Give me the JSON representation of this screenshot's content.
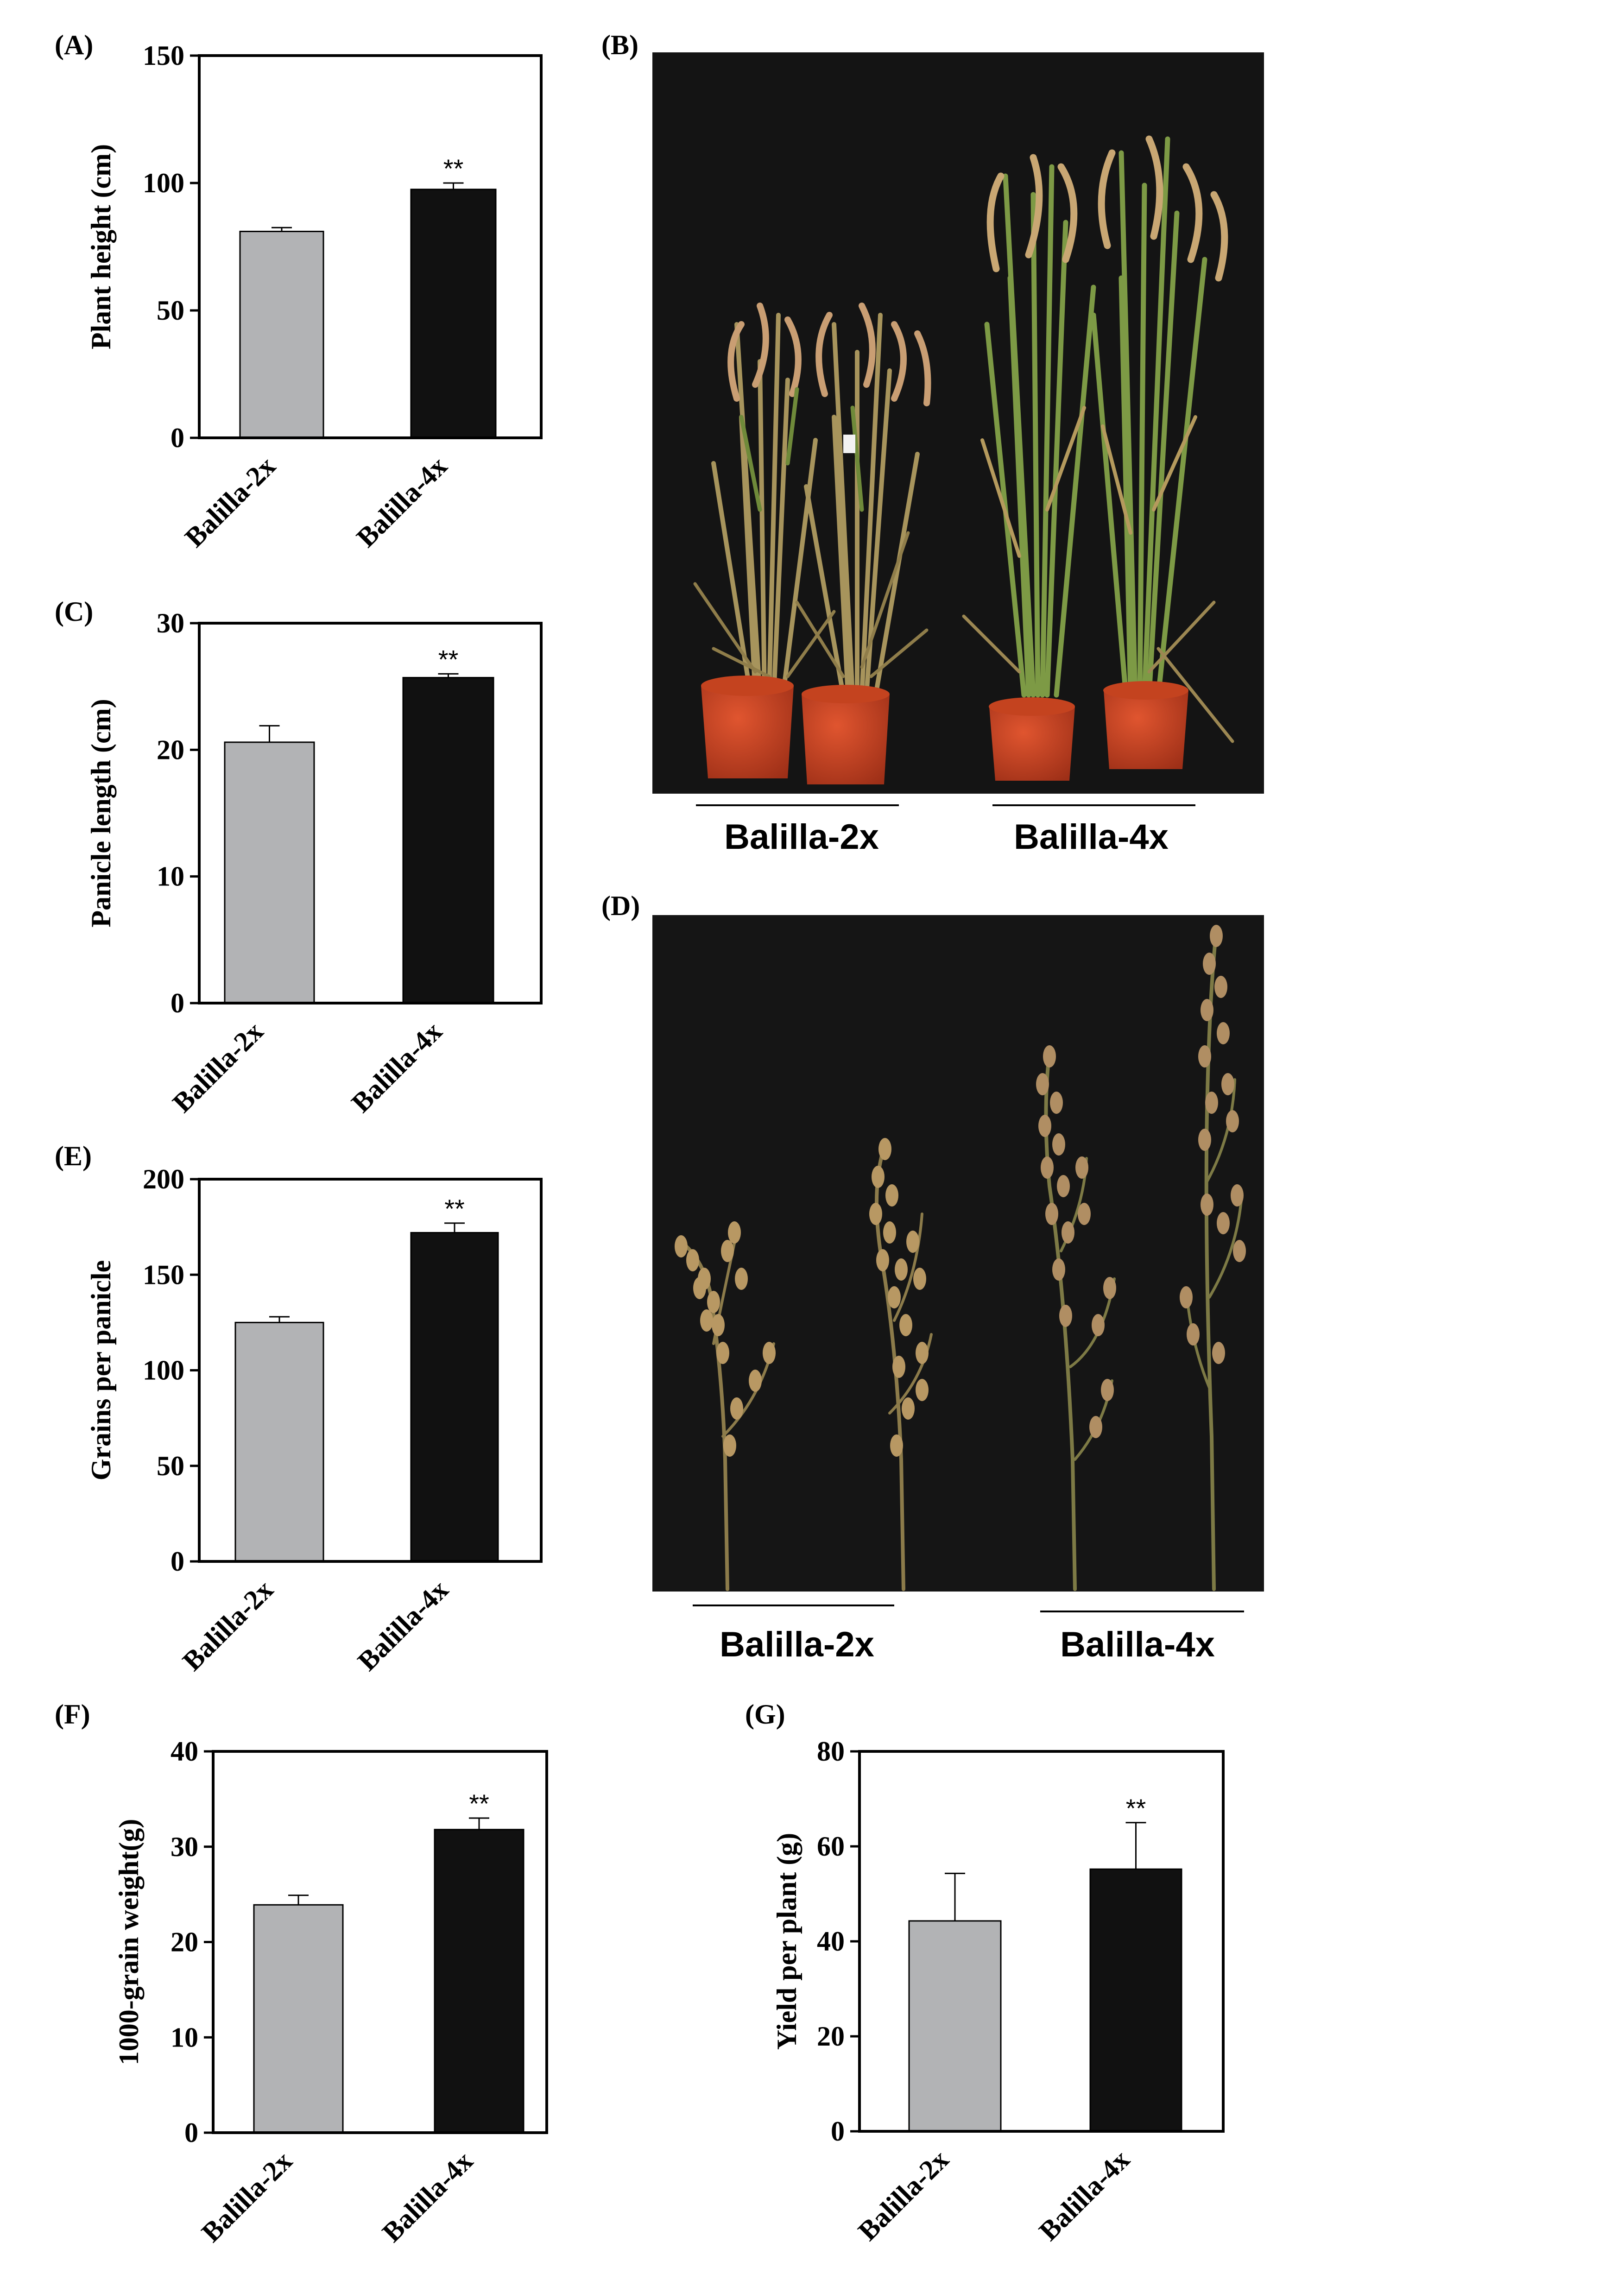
{
  "panel_labels": {
    "a": "(A)",
    "b": "(B)",
    "c": "(C)",
    "d": "(D)",
    "e": "(E)",
    "f": "(F)",
    "g": "(G)"
  },
  "photos": {
    "b": {
      "left_group": "Balilla-2x",
      "right_group": "Balilla-4x"
    },
    "d": {
      "left_group": "Balilla-2x",
      "right_group": "Balilla-4x"
    }
  },
  "colors": {
    "diploid_bar": "#b2b3b5",
    "tetraploid_bar": "#111111",
    "photo_background": "#141414"
  },
  "chart_data": [
    {
      "id": "a",
      "type": "bar",
      "categories": [
        "Balilla-2x",
        "Balilla-4x"
      ],
      "values": [
        81,
        97.5
      ],
      "errors": [
        1.5,
        2.5
      ],
      "significance": [
        "",
        "**"
      ],
      "ylabel": "Plant height (cm)",
      "ylim": [
        0,
        150
      ],
      "yticks": [
        0,
        50,
        100,
        150
      ],
      "grid": false
    },
    {
      "id": "c",
      "type": "bar",
      "categories": [
        "Balilla-2x",
        "Balilla-4x"
      ],
      "values": [
        20.6,
        25.7
      ],
      "errors": [
        1.3,
        0.3
      ],
      "significance": [
        "",
        "**"
      ],
      "ylabel": "Panicle length (cm)",
      "ylim": [
        0,
        30
      ],
      "yticks": [
        0,
        10,
        20,
        30
      ],
      "grid": false
    },
    {
      "id": "e",
      "type": "bar",
      "categories": [
        "Balilla-2x",
        "Balilla-4x"
      ],
      "values": [
        125,
        172
      ],
      "errors": [
        3,
        5
      ],
      "significance": [
        "",
        "**"
      ],
      "ylabel": "Grains per panicle",
      "ylim": [
        0,
        200
      ],
      "yticks": [
        0,
        50,
        100,
        150,
        200
      ],
      "grid": false
    },
    {
      "id": "f",
      "type": "bar",
      "categories": [
        "Balilla-2x",
        "Balilla-4x"
      ],
      "values": [
        23.9,
        31.8
      ],
      "errors": [
        1.0,
        1.2
      ],
      "significance": [
        "",
        "**"
      ],
      "ylabel": "1000-grain weight(g)",
      "ylim": [
        0,
        40
      ],
      "yticks": [
        0,
        10,
        20,
        30,
        40
      ],
      "grid": false
    },
    {
      "id": "g",
      "type": "bar",
      "categories": [
        "Balilla-2x",
        "Balilla-4x"
      ],
      "values": [
        44.3,
        55.2
      ],
      "errors": [
        10,
        9.8
      ],
      "significance": [
        "",
        "**"
      ],
      "ylabel": "Yield per plant (g)",
      "ylim": [
        0,
        80
      ],
      "yticks": [
        0,
        20,
        40,
        60,
        80
      ],
      "grid": false
    }
  ]
}
